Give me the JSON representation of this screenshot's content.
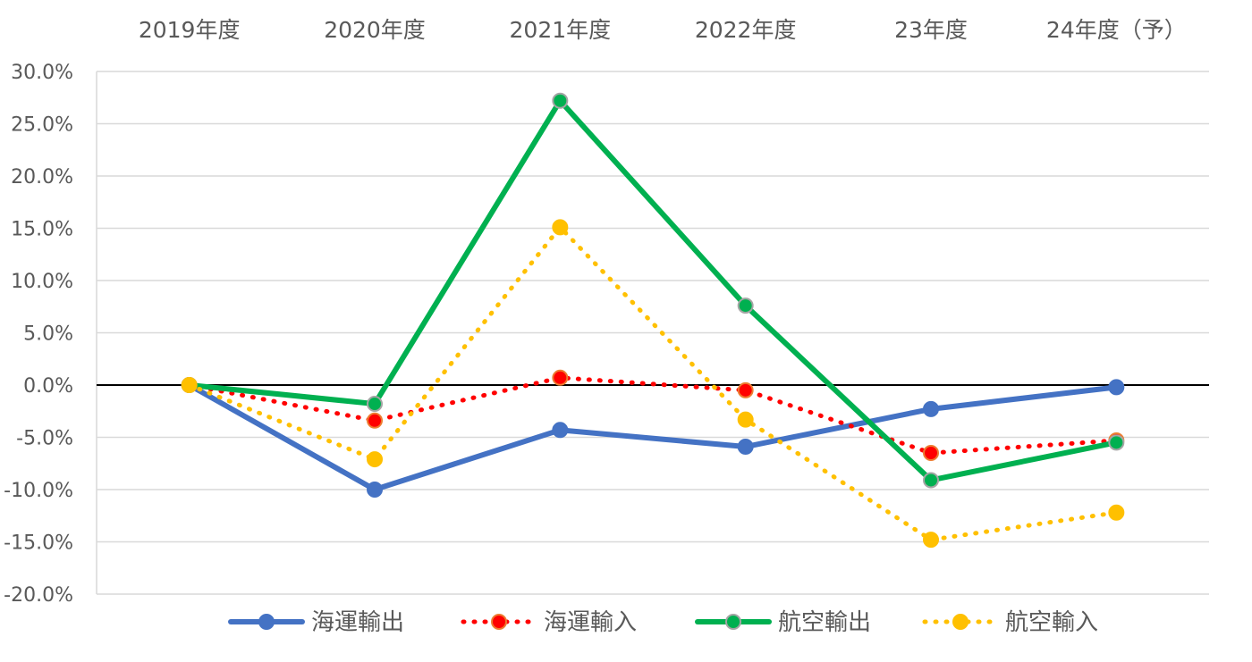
{
  "chart_data": {
    "type": "line",
    "title": "",
    "xlabel": "",
    "ylabel": "",
    "categories": [
      "2019年度",
      "2020年度",
      "2021年度",
      "2022年度",
      "23年度",
      "24年度（予）"
    ],
    "ylim": [
      -0.2,
      0.3
    ],
    "yticks": [
      0.3,
      0.25,
      0.2,
      0.15,
      0.1,
      0.05,
      0.0,
      -0.05,
      -0.1,
      -0.15,
      -0.2
    ],
    "ytick_labels": [
      "30.0%",
      "25.0%",
      "20.0%",
      "15.0%",
      "10.0%",
      "5.0%",
      "0.0%",
      "-5.0%",
      "-10.0%",
      "-15.0%",
      "-20.0%"
    ],
    "grid": "horizontal",
    "legend_position": "bottom",
    "series": [
      {
        "name": "海運輸出",
        "values": [
          0.0,
          -0.1,
          -0.043,
          -0.059,
          -0.023,
          -0.002
        ],
        "color": "#4472C4",
        "line_style": "solid",
        "marker_fill": "#4472C4",
        "marker_edge": "#4472C4"
      },
      {
        "name": "海運輸入",
        "values": [
          0.0,
          -0.034,
          0.007,
          -0.005,
          -0.065,
          -0.053
        ],
        "color": "#FF0000",
        "line_style": "dotted",
        "marker_fill": "#FF0000",
        "marker_edge": "#ED7D31"
      },
      {
        "name": "航空輸出",
        "values": [
          0.0,
          -0.018,
          0.272,
          0.076,
          -0.091,
          -0.055
        ],
        "color": "#00B050",
        "line_style": "solid",
        "marker_fill": "#00B050",
        "marker_edge": "#A5A5A5"
      },
      {
        "name": "航空輸入",
        "values": [
          0.0,
          -0.071,
          0.151,
          -0.033,
          -0.148,
          -0.122
        ],
        "color": "#FFC000",
        "line_style": "dotted",
        "marker_fill": "#FFC000",
        "marker_edge": "#FFC000"
      }
    ]
  }
}
